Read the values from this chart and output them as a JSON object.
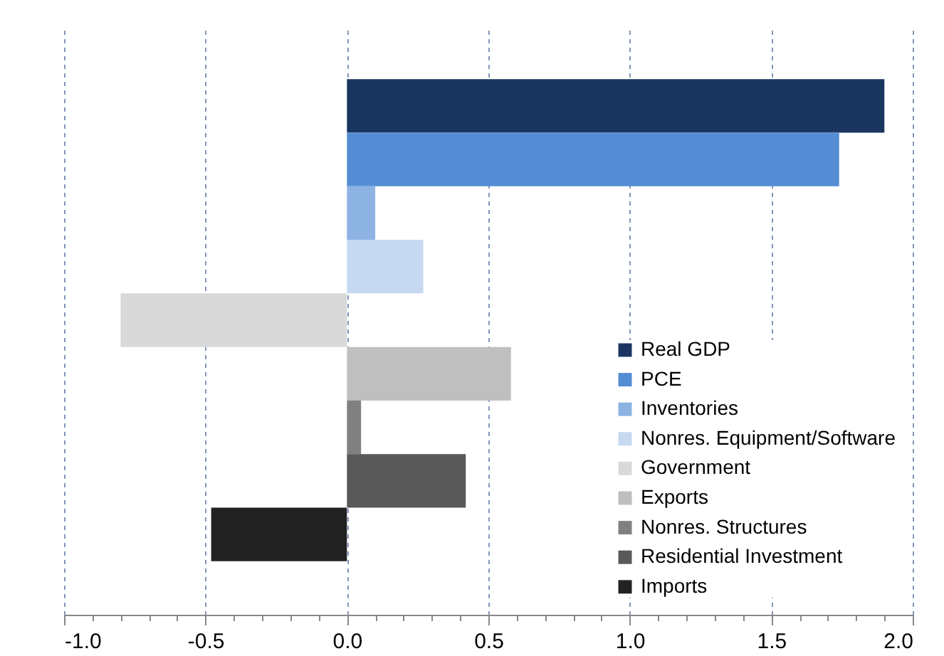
{
  "chart_data": {
    "type": "bar",
    "orientation": "horizontal",
    "categories": [
      null,
      null,
      null,
      null,
      null,
      null,
      null,
      null,
      null,
      null,
      null
    ],
    "series": [
      {
        "name": "Real GDP",
        "color": "#1a3660",
        "values": [
          null,
          1.9,
          null,
          null,
          null,
          null,
          null,
          null,
          null,
          null,
          null
        ]
      },
      {
        "name": "PCE",
        "color": "#548dd4",
        "values": [
          null,
          null,
          1.74,
          null,
          null,
          null,
          null,
          null,
          null,
          null,
          null
        ]
      },
      {
        "name": "Inventories",
        "color": "#8db3e2",
        "values": [
          null,
          null,
          null,
          0.1,
          null,
          null,
          null,
          null,
          null,
          null,
          null
        ]
      },
      {
        "name": "Nonres. Equipment/Software",
        "color": "#c6d9f1",
        "values": [
          null,
          null,
          null,
          null,
          0.27,
          null,
          null,
          null,
          null,
          null,
          null
        ]
      },
      {
        "name": "Government",
        "color": "#d9d9d9",
        "values": [
          null,
          null,
          null,
          null,
          null,
          -0.8,
          null,
          null,
          null,
          null,
          null
        ]
      },
      {
        "name": "Exports",
        "color": "#bfbfbf",
        "values": [
          null,
          null,
          null,
          null,
          null,
          null,
          0.58,
          null,
          null,
          null,
          null
        ]
      },
      {
        "name": "Nonres. Structures",
        "color": "#808080",
        "values": [
          null,
          null,
          null,
          null,
          null,
          null,
          null,
          0.05,
          null,
          null,
          null
        ]
      },
      {
        "name": "Residential Investment",
        "color": "#595959",
        "values": [
          null,
          null,
          null,
          null,
          null,
          null,
          null,
          null,
          0.42,
          null,
          null
        ]
      },
      {
        "name": "Imports",
        "color": "#222222",
        "values": [
          null,
          null,
          null,
          null,
          null,
          null,
          null,
          null,
          null,
          -0.48,
          null
        ]
      }
    ],
    "xlim": [
      -1,
      2
    ],
    "xticks": [
      {
        "value": -1,
        "label": "-1.0"
      },
      {
        "value": -0.9,
        "label": null
      },
      {
        "value": -0.8,
        "label": null
      },
      {
        "value": -0.7,
        "label": null
      },
      {
        "value": -0.6,
        "label": null
      },
      {
        "value": -0.5,
        "label": "-0.5"
      },
      {
        "value": -0.4,
        "label": null
      },
      {
        "value": -0.3,
        "label": null
      },
      {
        "value": -0.2,
        "label": null
      },
      {
        "value": -0.1,
        "label": null
      },
      {
        "value": 0,
        "label": "0.0"
      },
      {
        "value": 0.1,
        "label": null
      },
      {
        "value": 0.2,
        "label": null
      },
      {
        "value": 0.3,
        "label": null
      },
      {
        "value": 0.4,
        "label": null
      },
      {
        "value": 0.5,
        "label": "0.5"
      },
      {
        "value": 0.6,
        "label": null
      },
      {
        "value": 0.7,
        "label": null
      },
      {
        "value": 0.8,
        "label": null
      },
      {
        "value": 0.9,
        "label": null
      },
      {
        "value": 1,
        "label": "1.0"
      },
      {
        "value": 1.1,
        "label": null
      },
      {
        "value": 1.2,
        "label": null
      },
      {
        "value": 1.3,
        "label": null
      },
      {
        "value": 1.4,
        "label": null
      },
      {
        "value": 1.5,
        "label": "1.5"
      },
      {
        "value": 1.6,
        "label": null
      },
      {
        "value": 1.7,
        "label": null
      },
      {
        "value": 1.8,
        "label": null
      },
      {
        "value": 1.9,
        "label": null
      },
      {
        "value": 2,
        "label": "2.0"
      }
    ],
    "grid": "x",
    "legend": "bottom right",
    "stacked": true
  }
}
